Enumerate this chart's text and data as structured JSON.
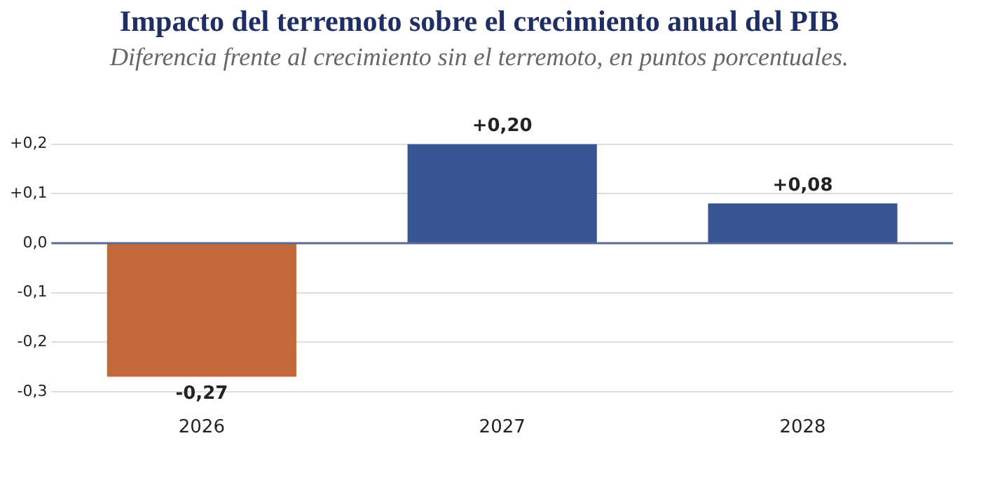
{
  "chart_data": {
    "type": "bar",
    "title": "Impacto del terremoto sobre el crecimiento anual del PIB",
    "subtitle": "Diferencia frente al crecimiento sin el terremoto, en puntos porcentuales.",
    "categories": [
      "2026",
      "2027",
      "2028"
    ],
    "values": [
      -0.27,
      0.2,
      0.08
    ],
    "colors": [
      "#c2693a",
      "#375592",
      "#375592"
    ],
    "value_labels": [
      "-0,27",
      "+0,20",
      "+0,08"
    ],
    "ylim": [
      -0.3,
      0.2
    ],
    "yticks": [
      {
        "value": -0.3,
        "label": "-0,3"
      },
      {
        "value": -0.2,
        "label": "-0,2"
      },
      {
        "value": -0.1,
        "label": "-0,1"
      },
      {
        "value": 0,
        "label": "0,0"
      },
      {
        "value": 0.1,
        "label": "+0,1"
      },
      {
        "value": 0.2,
        "label": "+0,2"
      }
    ],
    "ref_lines": [
      {
        "axis": "y",
        "value": 0,
        "color": "#5a6a95"
      }
    ],
    "grid": "y",
    "legend": false
  }
}
